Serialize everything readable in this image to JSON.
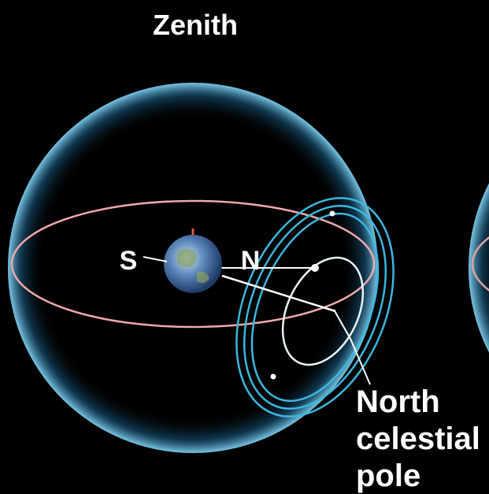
{
  "title": "Zenith",
  "labels": {
    "south": "S",
    "north": "N"
  },
  "callout": {
    "lines": [
      "North",
      "celestial",
      "pole"
    ]
  }
}
